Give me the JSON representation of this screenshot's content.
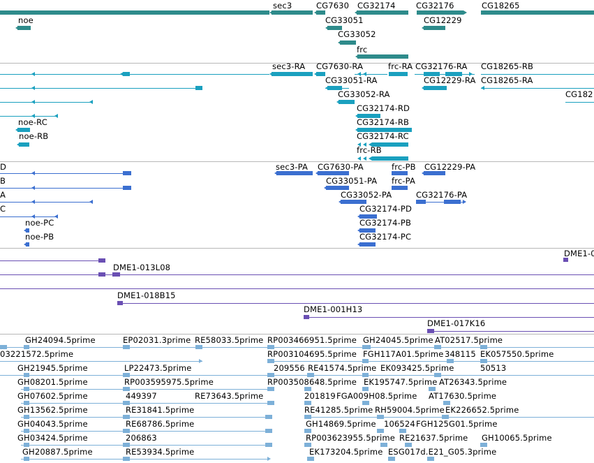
{
  "colors": {
    "gene": "#2e8b8b",
    "transcript": "#1aa0bf",
    "protein": "#3b6fd0",
    "clone": "#6a4fb3",
    "est": "#7db0d8",
    "separator": "#b8b8b8"
  },
  "tracks": {
    "genes": {
      "name": "genes-track",
      "labels": [
        "noe",
        "sec3",
        "CG7630",
        "CG32174",
        "CG32176",
        "CG18265",
        "CG33051",
        "CG12229",
        "CG33052",
        "frc"
      ]
    },
    "transcripts": {
      "name": "transcripts-track",
      "labels": [
        "sec3-RA",
        "CG7630-RA",
        "frc-RA",
        "CG32176-RA",
        "CG18265-RB",
        "CG33051-RA",
        "CG12229-RA",
        "CG18265-RA",
        "CG182",
        "CG33052-RA",
        "CG32174-RD",
        "noe-RC",
        "CG32174-RB",
        "noe-RB",
        "CG32174-RC",
        "frc-RB"
      ]
    },
    "proteins": {
      "name": "proteins-track",
      "labels": [
        "D",
        "sec3-PA",
        "CG7630-PA",
        "frc-PB",
        "CG12229-PA",
        "B",
        "CG33051-PA",
        "frc-PA",
        "A",
        "CG33052-PA",
        "CG32176-PA",
        "C",
        "CG32174-PD",
        "noe-PC",
        "CG32174-PB",
        "noe-PB",
        "CG32174-PC"
      ]
    },
    "clones": {
      "name": "clones-track",
      "labels": [
        "DME1-0",
        "DME1-013L08",
        "DME1-018B15",
        "DME1-001H13",
        "DME1-017K16"
      ]
    },
    "ests": {
      "name": "ests-track",
      "labels": [
        "GH24094.5prime",
        "EP02031.3prime",
        "RE58033.5prime",
        "RP003466951.5prime",
        "GH24045.5prime",
        "AT02517.5prime",
        "03221572.5prime",
        "RP003104695.5prime",
        "FGH117A01.5prime",
        "348115",
        "EK057550.5prime",
        "GH21945.5prime",
        "LP22473.5prime",
        "209556",
        "RE41574.5prime",
        "EK093425.5prime",
        "50513",
        "GH08201.5prime",
        "RP003595975.5prime",
        "RP003508648.5prime",
        "EK195747.5prime",
        "AT26343.5prime",
        "GH07602.5prime",
        "449397",
        "RE73643.5prime",
        "201819",
        "FGA009H08.5prime",
        "AT17630.5prime",
        "GH13562.5prime",
        "RE31841.5prime",
        "RE41285.5prime",
        "RH59004.5prime",
        "EK226652.5prime",
        "GH04043.5prime",
        "RE68786.5prime",
        "GH14869.5prime",
        "106524",
        "FGH125G01.5prime",
        "GH03424.5prime",
        "206863",
        "RP003623955.5prime",
        "RE21637.5prime",
        "GH10065.5prime",
        "GH20887.5prime",
        "RE53934.5prime",
        "EK173204.5prime",
        "ESG017d.E21_G05.3prime"
      ]
    }
  }
}
